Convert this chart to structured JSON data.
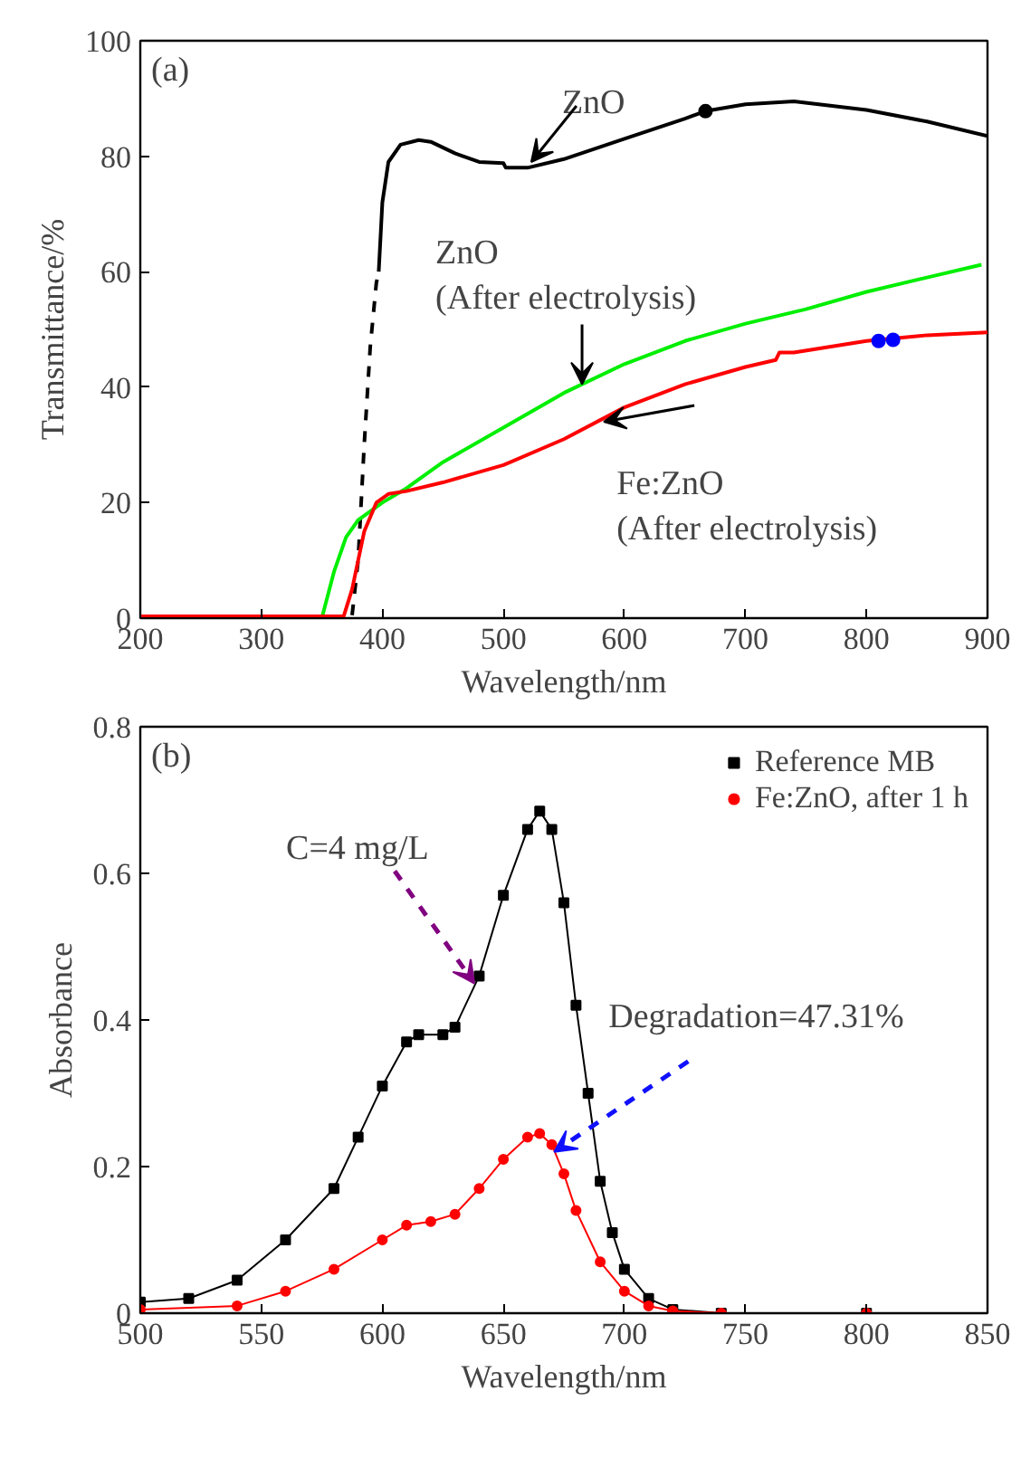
{
  "chart_data": [
    {
      "type": "line",
      "xlabel": "Wavelength/nm",
      "ylabel": "Transmittance/%",
      "xlim": [
        200,
        900
      ],
      "ylim": [
        0,
        100
      ],
      "xticks": [
        200,
        300,
        400,
        500,
        600,
        700,
        800,
        900
      ],
      "yticks": [
        0,
        20,
        40,
        60,
        80,
        100
      ],
      "grid": false,
      "legend": false,
      "marker": "none",
      "annotations": [
        "(a)",
        {
          "text": "ZnO",
          "x": 523,
          "y": 79
        },
        {
          "text": "ZnO\n(After electrolysis)",
          "x": 565,
          "y": 40.5
        },
        {
          "text": "Fe:ZnO\n(After electrolysis)",
          "x": 583,
          "y": 34
        }
      ],
      "series": [
        {
          "color": "#000000",
          "line_style": "dashed",
          "x": [
            375,
            380,
            385,
            390,
            395,
            397
          ],
          "values": [
            0.5,
            10,
            30,
            47,
            58,
            60
          ]
        },
        {
          "color": "#000000",
          "x": [
            397,
            400,
            405,
            415,
            430,
            440,
            460,
            480,
            500,
            502,
            520,
            550,
            600,
            650,
            667,
            700,
            740,
            800,
            850,
            900
          ],
          "values": [
            60,
            72,
            79,
            82,
            82.8,
            82.5,
            80.5,
            79,
            78.8,
            78,
            78,
            79.5,
            83,
            86.5,
            87.8,
            89,
            89.5,
            88,
            86,
            83.5
          ]
        },
        {
          "color": "#00ee00",
          "x": [
            200,
            350,
            360,
            370,
            380,
            400,
            420,
            450,
            500,
            550,
            600,
            650,
            700,
            750,
            800,
            850,
            895
          ],
          "values": [
            0,
            0,
            8,
            14,
            17,
            20,
            22.5,
            27,
            33,
            39,
            44,
            48,
            51,
            53.5,
            56.5,
            59,
            61.2
          ]
        },
        {
          "color": "#ff0000",
          "x": [
            200,
            368,
            375,
            385,
            395,
            405,
            420,
            450,
            500,
            550,
            600,
            650,
            700,
            725,
            728,
            740,
            800,
            850,
            900
          ],
          "values": [
            0.3,
            0.3,
            5,
            15,
            20,
            21.5,
            22,
            23.5,
            26.5,
            31,
            36.5,
            40.5,
            43.5,
            44.7,
            46,
            46,
            48,
            49,
            49.5
          ]
        },
        {
          "type": "scatter",
          "marker": "circle",
          "color": "#000000",
          "x": [
            667
          ],
          "values": [
            87.8
          ]
        },
        {
          "type": "scatter",
          "marker": "circle",
          "color": "#0000ff",
          "x": [
            810,
            822
          ],
          "values": [
            48,
            48.2
          ]
        }
      ]
    },
    {
      "type": "line",
      "xlabel": "Wavelength/nm",
      "ylabel": "Absorbance",
      "xlim": [
        500,
        850
      ],
      "ylim": [
        0,
        0.8
      ],
      "xticks": [
        500,
        550,
        600,
        650,
        700,
        750,
        800,
        850
      ],
      "yticks": [
        0,
        0.2,
        0.4,
        0.6,
        0.8
      ],
      "grid": false,
      "legend": "top right",
      "annotations": [
        "(b)",
        {
          "text": "C=4 mg/L",
          "x": 638,
          "y": 0.45
        },
        {
          "text": "Degradation=47.31%",
          "x": 671,
          "y": 0.22
        }
      ],
      "series": [
        {
          "name": "Reference MB",
          "color": "#000000",
          "marker": "square",
          "x": [
            500,
            520,
            540,
            560,
            580,
            590,
            600,
            610,
            615,
            625,
            630,
            640,
            650,
            660,
            665,
            670,
            675,
            680,
            685,
            690,
            695,
            700,
            710,
            720,
            740,
            800
          ],
          "values": [
            0.015,
            0.02,
            0.045,
            0.1,
            0.17,
            0.24,
            0.31,
            0.37,
            0.38,
            0.38,
            0.39,
            0.46,
            0.57,
            0.66,
            0.685,
            0.66,
            0.56,
            0.42,
            0.3,
            0.18,
            0.11,
            0.06,
            0.02,
            0.005,
            0,
            0
          ]
        },
        {
          "name": "Fe:ZnO, after 1 h",
          "color": "#ff0000",
          "marker": "circle",
          "x": [
            500,
            540,
            560,
            580,
            600,
            610,
            620,
            630,
            640,
            650,
            660,
            665,
            670,
            675,
            680,
            690,
            700,
            710,
            720,
            740,
            800
          ],
          "values": [
            0.005,
            0.01,
            0.03,
            0.06,
            0.1,
            0.12,
            0.125,
            0.135,
            0.17,
            0.21,
            0.24,
            0.245,
            0.23,
            0.19,
            0.14,
            0.07,
            0.03,
            0.01,
            0.003,
            0,
            0
          ]
        }
      ]
    }
  ]
}
